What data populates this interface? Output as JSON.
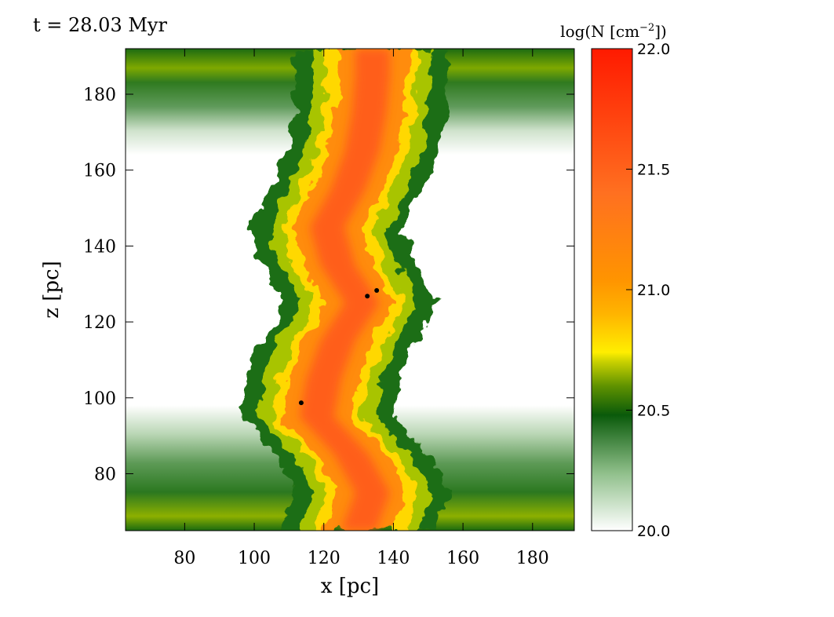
{
  "chart_data": {
    "type": "heatmap",
    "title": "t = 28.03 Myr",
    "xlabel": "x [pc]",
    "ylabel": "z [pc]",
    "xlim": [
      63,
      192
    ],
    "ylim": [
      65,
      192
    ],
    "x_ticks": [
      "80",
      "100",
      "120",
      "140",
      "160",
      "180"
    ],
    "y_ticks": [
      "80",
      "100",
      "120",
      "140",
      "160",
      "180"
    ],
    "colorbar": {
      "label_prefix": "log(N [cm",
      "label_exp": "−2",
      "label_suffix": "])",
      "range": [
        20.0,
        22.0
      ],
      "ticks": [
        "20.0",
        "20.5",
        "21.0",
        "21.5",
        "22.0"
      ],
      "colors": [
        "#ffffff",
        "#0a5a0a",
        "#8ab000",
        "#ffee00",
        "#ff9400",
        "#ff6020",
        "#ff1a00"
      ]
    },
    "points": [
      {
        "x": 132.5,
        "y": 126.8
      },
      {
        "x": 135.2,
        "y": 128.3
      },
      {
        "x": 113.5,
        "y": 98.7
      }
    ],
    "ridge": [
      {
        "z": 65,
        "x": 130
      },
      {
        "z": 75,
        "x": 134
      },
      {
        "z": 85,
        "x": 128
      },
      {
        "z": 95,
        "x": 118
      },
      {
        "z": 105,
        "x": 120
      },
      {
        "z": 115,
        "x": 124
      },
      {
        "z": 125,
        "x": 131
      },
      {
        "z": 135,
        "x": 124
      },
      {
        "z": 145,
        "x": 121
      },
      {
        "z": 155,
        "x": 127
      },
      {
        "z": 165,
        "x": 131
      },
      {
        "z": 175,
        "x": 133
      },
      {
        "z": 185,
        "x": 134
      },
      {
        "z": 192,
        "x": 134
      }
    ]
  }
}
